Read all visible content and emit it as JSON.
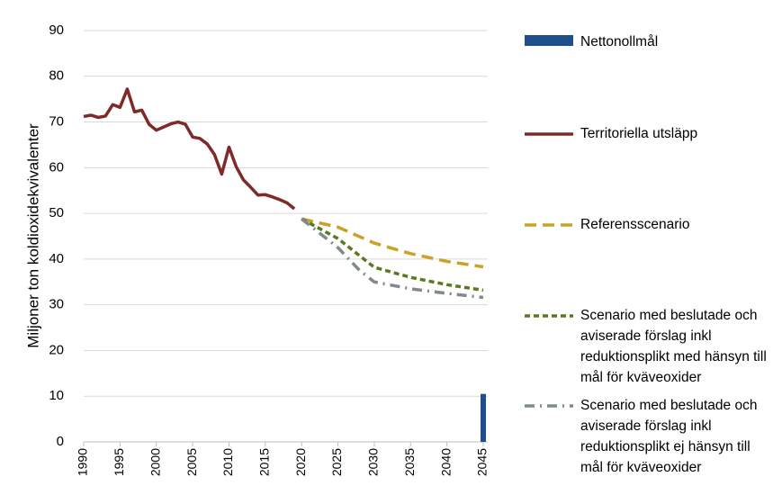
{
  "chart_data": {
    "type": "line",
    "ylabel": "Miljoner ton koldioxidekvivalenter",
    "xlim": [
      1990,
      2045
    ],
    "xticks": [
      1990,
      1995,
      2000,
      2005,
      2010,
      2015,
      2020,
      2025,
      2030,
      2035,
      2040,
      2045
    ],
    "ylim": [
      0,
      90
    ],
    "yticks": [
      0,
      10,
      20,
      30,
      40,
      50,
      60,
      70,
      80,
      90
    ],
    "grid": true,
    "legend": "right",
    "series": [
      {
        "name": "Nettonollmål",
        "type": "bar",
        "color": "#1f4e8c",
        "x": [
          2045
        ],
        "values": [
          10.5
        ]
      },
      {
        "name": "Territoriella utsläpp",
        "type": "line",
        "color": "#7f2a28",
        "dash": "solid",
        "x": [
          1990,
          1991,
          1992,
          1993,
          1994,
          1995,
          1996,
          1997,
          1998,
          1999,
          2000,
          2001,
          2002,
          2003,
          2004,
          2005,
          2006,
          2007,
          2008,
          2009,
          2010,
          2011,
          2012,
          2013,
          2014,
          2015,
          2016,
          2017,
          2018,
          2019
        ],
        "values": [
          71.2,
          71.5,
          71.0,
          71.3,
          73.8,
          73.2,
          77.2,
          72.2,
          72.6,
          69.5,
          68.2,
          68.9,
          69.6,
          70.0,
          69.5,
          66.7,
          66.4,
          65.2,
          62.9,
          58.6,
          64.5,
          60.2,
          57.3,
          55.7,
          54.0,
          54.1,
          53.6,
          53.0,
          52.3,
          51.0
        ]
      },
      {
        "name": "Referensscenario",
        "type": "line",
        "color": "#c9a227",
        "dash": "dashed",
        "x": [
          2020,
          2025,
          2030,
          2035,
          2040,
          2045
        ],
        "values": [
          48.8,
          47.0,
          43.5,
          41.2,
          39.5,
          38.3
        ]
      },
      {
        "name": "Scenario med beslutade och aviserade förslag inkl reduktionsplikt med hänsyn till mål för kväveoxider",
        "type": "line",
        "color": "#5b7a1e",
        "dash": "dotted",
        "x": [
          2020,
          2025,
          2030,
          2035,
          2040,
          2045
        ],
        "values": [
          48.8,
          44.5,
          38.2,
          36.0,
          34.4,
          33.2
        ]
      },
      {
        "name": "Scenario med beslutade och aviserade förslag inkl reduktionsplikt ej hänsyn till mål för kväveoxider",
        "type": "line",
        "color": "#7f8a8c",
        "dash": "dashdot",
        "x": [
          2020,
          2025,
          2028,
          2030,
          2035,
          2040,
          2045
        ],
        "values": [
          48.8,
          42.5,
          37.5,
          35.0,
          33.5,
          32.5,
          31.6
        ]
      }
    ]
  }
}
